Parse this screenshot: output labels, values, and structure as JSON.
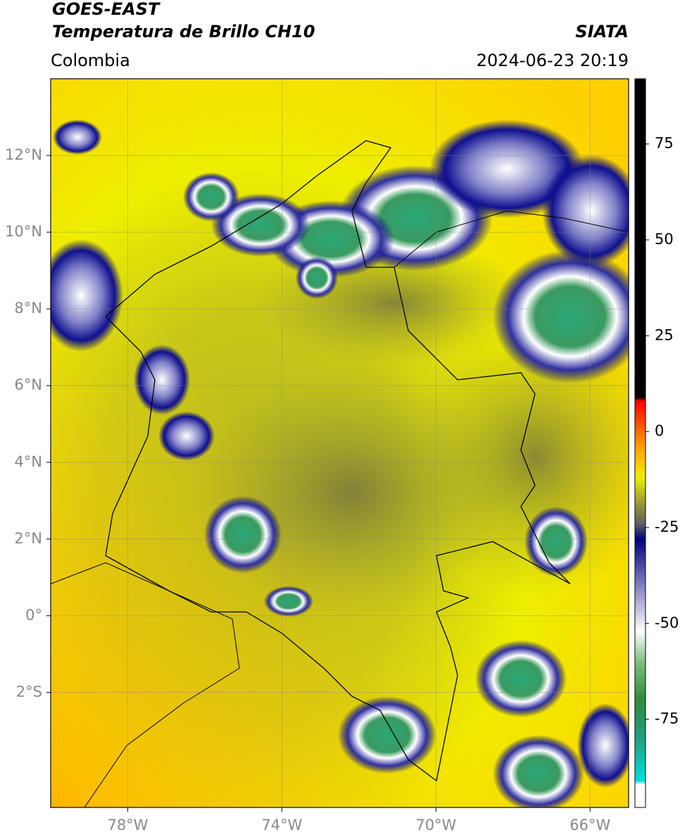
{
  "header": {
    "title": "GOES-EAST",
    "subtitle": "Temperatura de Brillo CH10",
    "source": "SIATA",
    "region": "Colombia",
    "datetime": "2024-06-23 20:19"
  },
  "map": {
    "lon_range": [
      -80,
      -65
    ],
    "lat_range": [
      -5,
      14
    ],
    "lon_ticks": [
      {
        "value": -78,
        "label": "78°W"
      },
      {
        "value": -74,
        "label": "74°W"
      },
      {
        "value": -70,
        "label": "70°W"
      },
      {
        "value": -66,
        "label": "66°W"
      }
    ],
    "lat_ticks": [
      {
        "value": 12,
        "label": "12°N"
      },
      {
        "value": 10,
        "label": "10°N"
      },
      {
        "value": 8,
        "label": "8°N"
      },
      {
        "value": 6,
        "label": "6°N"
      },
      {
        "value": 4,
        "label": "4°N"
      },
      {
        "value": 2,
        "label": "2°N"
      },
      {
        "value": 0,
        "label": "0°"
      },
      {
        "value": -2,
        "label": "2°S"
      }
    ]
  },
  "colorbar": {
    "range": [
      -98,
      92
    ],
    "ticks": [
      75,
      50,
      25,
      0,
      -25,
      -50,
      -75
    ],
    "stops": [
      {
        "value": -98,
        "color": "#ffffff"
      },
      {
        "value": -92,
        "color": "#ffffff"
      },
      {
        "value": -91,
        "color": "#00e0e0"
      },
      {
        "value": -80,
        "color": "#20a080"
      },
      {
        "value": -70,
        "color": "#2e8b3a"
      },
      {
        "value": -60,
        "color": "#7fbf7f"
      },
      {
        "value": -52,
        "color": "#ffffff"
      },
      {
        "value": -40,
        "color": "#8080c0"
      },
      {
        "value": -28,
        "color": "#000080"
      },
      {
        "value": -24,
        "color": "#606060"
      },
      {
        "value": -18,
        "color": "#a0a030"
      },
      {
        "value": -12,
        "color": "#f0f000"
      },
      {
        "value": -4,
        "color": "#ffa000"
      },
      {
        "value": 8,
        "color": "#ff0000"
      },
      {
        "value": 9,
        "color": "#000000"
      },
      {
        "value": 92,
        "color": "#000000"
      }
    ]
  }
}
